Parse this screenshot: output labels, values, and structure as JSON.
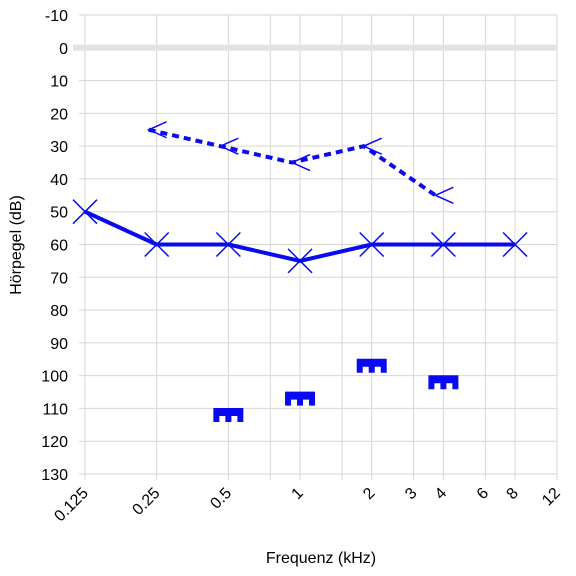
{
  "chart_data": {
    "type": "line",
    "xlabel": "Frequenz (kHz)",
    "ylabel": "Hörpegel (dB)",
    "x_scale": "log",
    "y_inverted": true,
    "xlim": [
      0.125,
      12
    ],
    "ylim": [
      -10,
      130
    ],
    "x_ticks": [
      {
        "value": 0.125,
        "label": "0.125",
        "major": true
      },
      {
        "value": 0.25,
        "label": "0.25",
        "major": true
      },
      {
        "value": 0.5,
        "label": "0.5",
        "major": true
      },
      {
        "value": 0.75,
        "label": "",
        "major": false
      },
      {
        "value": 1,
        "label": "1",
        "major": true
      },
      {
        "value": 1.5,
        "label": "",
        "major": false
      },
      {
        "value": 2,
        "label": "2",
        "major": true
      },
      {
        "value": 3,
        "label": "3",
        "major": false
      },
      {
        "value": 4,
        "label": "4",
        "major": true
      },
      {
        "value": 6,
        "label": "6",
        "major": false
      },
      {
        "value": 8,
        "label": "8",
        "major": true
      },
      {
        "value": 12,
        "label": "12",
        "major": false
      }
    ],
    "y_ticks": [
      -10,
      0,
      10,
      20,
      30,
      40,
      50,
      60,
      70,
      80,
      90,
      100,
      110,
      120,
      130
    ],
    "reference_line_y": 0,
    "colors": {
      "series": "#0a0af0",
      "grid": "#d6d6d6",
      "reference": "#e3e3e3",
      "text": "#000000"
    },
    "series": [
      {
        "marker": "cross",
        "line": "solid",
        "x": [
          0.125,
          0.25,
          0.5,
          1,
          2,
          4,
          8
        ],
        "y": [
          50,
          60,
          60,
          65,
          60,
          60,
          60
        ]
      },
      {
        "marker": "left-arrow",
        "line": "dashed",
        "x": [
          0.25,
          0.5,
          1,
          2,
          4
        ],
        "y": [
          25,
          30,
          35,
          30,
          45
        ]
      },
      {
        "marker": "bracket",
        "line": "none",
        "x": [
          0.5,
          1,
          2,
          4
        ],
        "y": [
          112,
          107,
          97,
          102
        ]
      }
    ]
  }
}
